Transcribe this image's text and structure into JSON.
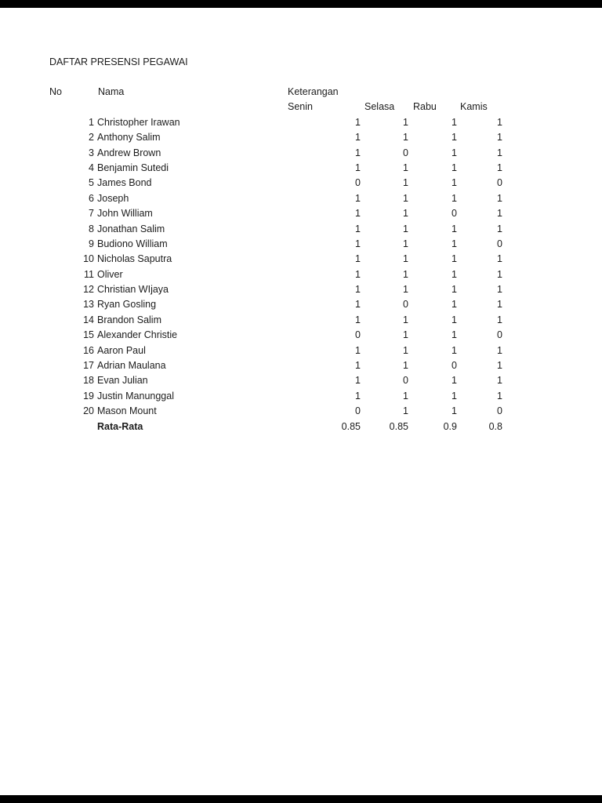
{
  "page": {
    "title": "DAFTAR PRESENSI PEGAWAI"
  },
  "colors": {
    "page_bg": "#ffffff",
    "text": "#1c1c1c",
    "edge_bar": "#000000"
  },
  "table": {
    "col_no": "No",
    "col_nama": "Nama",
    "col_keterangan": "Keterangan",
    "days": [
      "Senin",
      "Selasa",
      "Rabu",
      "Kamis"
    ],
    "rows": [
      {
        "no": "1",
        "nama": "Christopher Irawan",
        "values": [
          "1",
          "1",
          "1",
          "1"
        ]
      },
      {
        "no": "2",
        "nama": "Anthony Salim",
        "values": [
          "1",
          "1",
          "1",
          "1"
        ]
      },
      {
        "no": "3",
        "nama": "Andrew Brown",
        "values": [
          "1",
          "0",
          "1",
          "1"
        ]
      },
      {
        "no": "4",
        "nama": "Benjamin Sutedi",
        "values": [
          "1",
          "1",
          "1",
          "1"
        ]
      },
      {
        "no": "5",
        "nama": "James Bond",
        "values": [
          "0",
          "1",
          "1",
          "0"
        ]
      },
      {
        "no": "6",
        "nama": "Joseph",
        "values": [
          "1",
          "1",
          "1",
          "1"
        ]
      },
      {
        "no": "7",
        "nama": "John William",
        "values": [
          "1",
          "1",
          "0",
          "1"
        ]
      },
      {
        "no": "8",
        "nama": "Jonathan Salim",
        "values": [
          "1",
          "1",
          "1",
          "1"
        ]
      },
      {
        "no": "9",
        "nama": "Budiono William",
        "values": [
          "1",
          "1",
          "1",
          "0"
        ]
      },
      {
        "no": "10",
        "nama": "Nicholas Saputra",
        "values": [
          "1",
          "1",
          "1",
          "1"
        ]
      },
      {
        "no": "11",
        "nama": "Oliver",
        "values": [
          "1",
          "1",
          "1",
          "1"
        ]
      },
      {
        "no": "12",
        "nama": "Christian WIjaya",
        "values": [
          "1",
          "1",
          "1",
          "1"
        ]
      },
      {
        "no": "13",
        "nama": "Ryan Gosling",
        "values": [
          "1",
          "0",
          "1",
          "1"
        ]
      },
      {
        "no": "14",
        "nama": "Brandon Salim",
        "values": [
          "1",
          "1",
          "1",
          "1"
        ]
      },
      {
        "no": "15",
        "nama": "Alexander Christie",
        "values": [
          "0",
          "1",
          "1",
          "0"
        ]
      },
      {
        "no": "16",
        "nama": "Aaron Paul",
        "values": [
          "1",
          "1",
          "1",
          "1"
        ]
      },
      {
        "no": "17",
        "nama": "Adrian Maulana",
        "values": [
          "1",
          "1",
          "0",
          "1"
        ]
      },
      {
        "no": "18",
        "nama": "Evan Julian",
        "values": [
          "1",
          "0",
          "1",
          "1"
        ]
      },
      {
        "no": "19",
        "nama": "Justin Manunggal",
        "values": [
          "1",
          "1",
          "1",
          "1"
        ]
      },
      {
        "no": "20",
        "nama": "Mason Mount",
        "values": [
          "0",
          "1",
          "1",
          "0"
        ]
      }
    ],
    "footer": {
      "label": "Rata-Rata",
      "values": [
        "0.85",
        "0.85",
        "0.9",
        "0.8"
      ]
    }
  }
}
